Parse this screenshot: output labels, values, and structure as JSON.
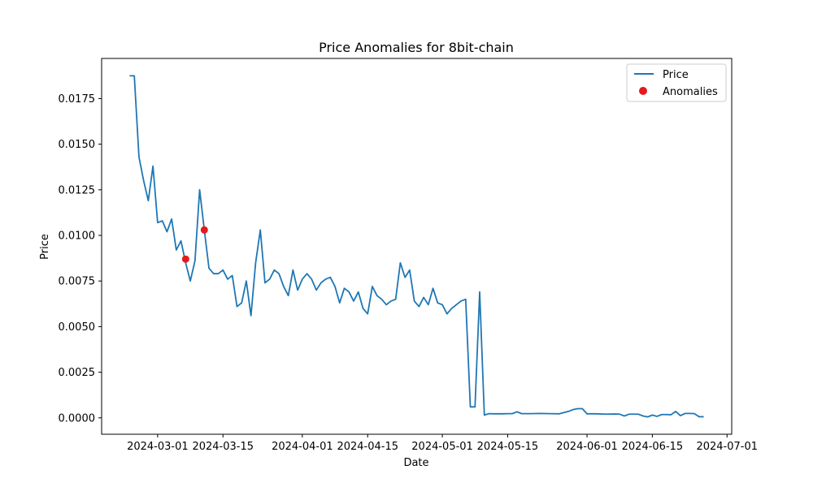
{
  "chart_data": {
    "type": "line",
    "title": "Price Anomalies for 8bit-chain",
    "xlabel": "Date",
    "ylabel": "Price",
    "xlim": [
      "2024-02-18",
      "2024-07-02"
    ],
    "ylim": [
      -0.0009,
      0.0197
    ],
    "grid": false,
    "legend_placement": "top-right",
    "x_ticks": [
      "2024-03-01",
      "2024-03-15",
      "2024-04-01",
      "2024-04-15",
      "2024-05-01",
      "2024-05-15",
      "2024-06-01",
      "2024-06-15",
      "2024-07-01"
    ],
    "y_ticks": [
      "0.0000",
      "0.0025",
      "0.0050",
      "0.0075",
      "0.0100",
      "0.0125",
      "0.0150",
      "0.0175"
    ],
    "colors": {
      "price": "#1f77b4",
      "anomalies": "#e41a1c"
    },
    "series": [
      {
        "name": "Price",
        "kind": "line",
        "x": [
          "2024-02-24",
          "2024-02-25",
          "2024-02-26",
          "2024-02-27",
          "2024-02-28",
          "2024-02-29",
          "2024-03-01",
          "2024-03-02",
          "2024-03-03",
          "2024-03-04",
          "2024-03-05",
          "2024-03-06",
          "2024-03-07",
          "2024-03-08",
          "2024-03-09",
          "2024-03-10",
          "2024-03-11",
          "2024-03-12",
          "2024-03-13",
          "2024-03-14",
          "2024-03-15",
          "2024-03-16",
          "2024-03-17",
          "2024-03-18",
          "2024-03-19",
          "2024-03-20",
          "2024-03-21",
          "2024-03-22",
          "2024-03-23",
          "2024-03-24",
          "2024-03-25",
          "2024-03-26",
          "2024-03-27",
          "2024-03-28",
          "2024-03-29",
          "2024-03-30",
          "2024-03-31",
          "2024-04-01",
          "2024-04-02",
          "2024-04-03",
          "2024-04-04",
          "2024-04-05",
          "2024-04-06",
          "2024-04-07",
          "2024-04-08",
          "2024-04-09",
          "2024-04-10",
          "2024-04-11",
          "2024-04-12",
          "2024-04-13",
          "2024-04-14",
          "2024-04-15",
          "2024-04-16",
          "2024-04-17",
          "2024-04-18",
          "2024-04-19",
          "2024-04-20",
          "2024-04-21",
          "2024-04-22",
          "2024-04-23",
          "2024-04-24",
          "2024-04-25",
          "2024-04-26",
          "2024-04-27",
          "2024-04-28",
          "2024-04-29",
          "2024-04-30",
          "2024-05-01",
          "2024-05-02",
          "2024-05-03",
          "2024-05-04",
          "2024-05-05",
          "2024-05-06",
          "2024-05-07",
          "2024-05-08",
          "2024-05-09",
          "2024-05-10",
          "2024-05-11",
          "2024-05-12",
          "2024-05-14",
          "2024-05-15",
          "2024-05-16",
          "2024-05-17",
          "2024-05-18",
          "2024-05-20",
          "2024-05-22",
          "2024-05-24",
          "2024-05-26",
          "2024-05-28",
          "2024-05-29",
          "2024-05-30",
          "2024-05-31",
          "2024-06-01",
          "2024-06-03",
          "2024-06-05",
          "2024-06-07",
          "2024-06-08",
          "2024-06-09",
          "2024-06-10",
          "2024-06-11",
          "2024-06-12",
          "2024-06-13",
          "2024-06-14",
          "2024-06-15",
          "2024-06-16",
          "2024-06-17",
          "2024-06-18",
          "2024-06-19",
          "2024-06-20",
          "2024-06-21",
          "2024-06-22",
          "2024-06-23",
          "2024-06-24",
          "2024-06-25",
          "2024-06-26"
        ],
        "values": [
          0.01875,
          0.01875,
          0.0143,
          0.013,
          0.0119,
          0.0138,
          0.0107,
          0.0108,
          0.0102,
          0.0109,
          0.0092,
          0.0097,
          0.0085,
          0.0075,
          0.0086,
          0.0125,
          0.0103,
          0.0082,
          0.0079,
          0.0079,
          0.0081,
          0.0076,
          0.0078,
          0.0061,
          0.0063,
          0.0075,
          0.0056,
          0.0085,
          0.0103,
          0.0074,
          0.0076,
          0.0081,
          0.0079,
          0.0072,
          0.0067,
          0.0081,
          0.007,
          0.0076,
          0.0079,
          0.0076,
          0.007,
          0.0074,
          0.0076,
          0.0077,
          0.0072,
          0.0063,
          0.0071,
          0.0069,
          0.0064,
          0.0069,
          0.006,
          0.0057,
          0.0072,
          0.0067,
          0.0065,
          0.0062,
          0.0064,
          0.0065,
          0.0085,
          0.0077,
          0.0081,
          0.0064,
          0.0061,
          0.0066,
          0.0062,
          0.0071,
          0.0063,
          0.0062,
          0.0057,
          0.006,
          0.0062,
          0.0064,
          0.0065,
          0.0006,
          0.0006,
          0.0069,
          0.00015,
          0.00023,
          0.00022,
          0.00022,
          0.00023,
          0.00023,
          0.00033,
          0.00023,
          0.00023,
          0.00024,
          0.00023,
          0.00022,
          0.00035,
          0.00045,
          0.0005,
          0.0005,
          0.00022,
          0.00022,
          0.0002,
          0.00021,
          0.0002,
          0.0001,
          0.0002,
          0.0002,
          0.0002,
          0.0001,
          5e-05,
          0.00015,
          8e-05,
          0.00018,
          0.00018,
          0.00017,
          0.00035,
          0.00012,
          0.00024,
          0.00024,
          0.00023,
          6e-05,
          6e-05
        ]
      },
      {
        "name": "Anomalies",
        "kind": "scatter",
        "x": [
          "2024-03-07",
          "2024-03-11"
        ],
        "values": [
          0.0087,
          0.0103
        ]
      }
    ]
  }
}
